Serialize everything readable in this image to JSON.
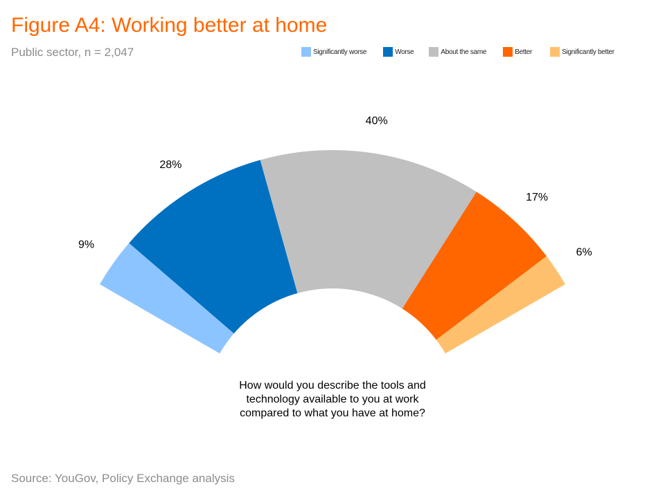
{
  "header": {
    "title": "Figure A4: Working better at home",
    "subtitle": "Public sector, n = 2,047"
  },
  "chart_data": {
    "type": "pie",
    "variant": "semi-donut (fan)",
    "title": "Figure A4: Working better at home",
    "subtitle": "Public sector, n = 2,047",
    "categories": [
      "Significantly worse",
      "Worse",
      "About the same",
      "Better",
      "Significantly better"
    ],
    "values": [
      9,
      28,
      40,
      17,
      6
    ],
    "value_labels": [
      "9%",
      "28%",
      "40%",
      "17%",
      "6%"
    ],
    "colors": [
      "#8cc4ff",
      "#0070c0",
      "#c0c0c0",
      "#ff6600",
      "#ffc06e"
    ],
    "legend_placement": "top-right",
    "question_lines": [
      "How would you describe the tools and",
      "technology available to you at work",
      "compared to what you have at home?"
    ]
  },
  "footer": {
    "source": "Source: YouGov, Policy Exchange analysis"
  }
}
